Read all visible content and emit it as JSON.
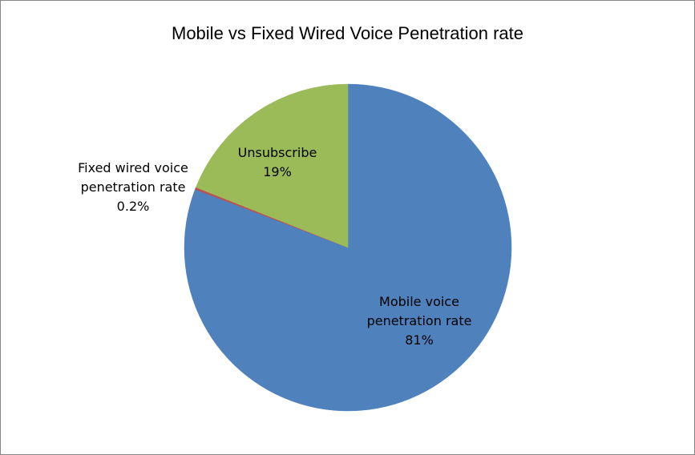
{
  "chart_data": {
    "type": "pie",
    "title": "Mobile vs Fixed Wired Voice Penetration rate",
    "legend": "none",
    "start_angle_deg": 0,
    "direction": "clockwise",
    "slices": [
      {
        "name": "Mobile voice penetration rate",
        "label_lines": [
          "Mobile voice",
          "penetration rate"
        ],
        "value": 80.8,
        "display_value": "81%",
        "color": "#4F81BD"
      },
      {
        "name": "Fixed wired voice penetration rate",
        "label_lines": [
          "Fixed wired voice",
          "penetration rate"
        ],
        "value": 0.2,
        "display_value": "0.2%",
        "color": "#C0504D"
      },
      {
        "name": "Unsubscribe",
        "label_lines": [
          "Unsubscribe"
        ],
        "value": 19,
        "display_value": "19%",
        "color": "#9BBB59"
      }
    ]
  }
}
